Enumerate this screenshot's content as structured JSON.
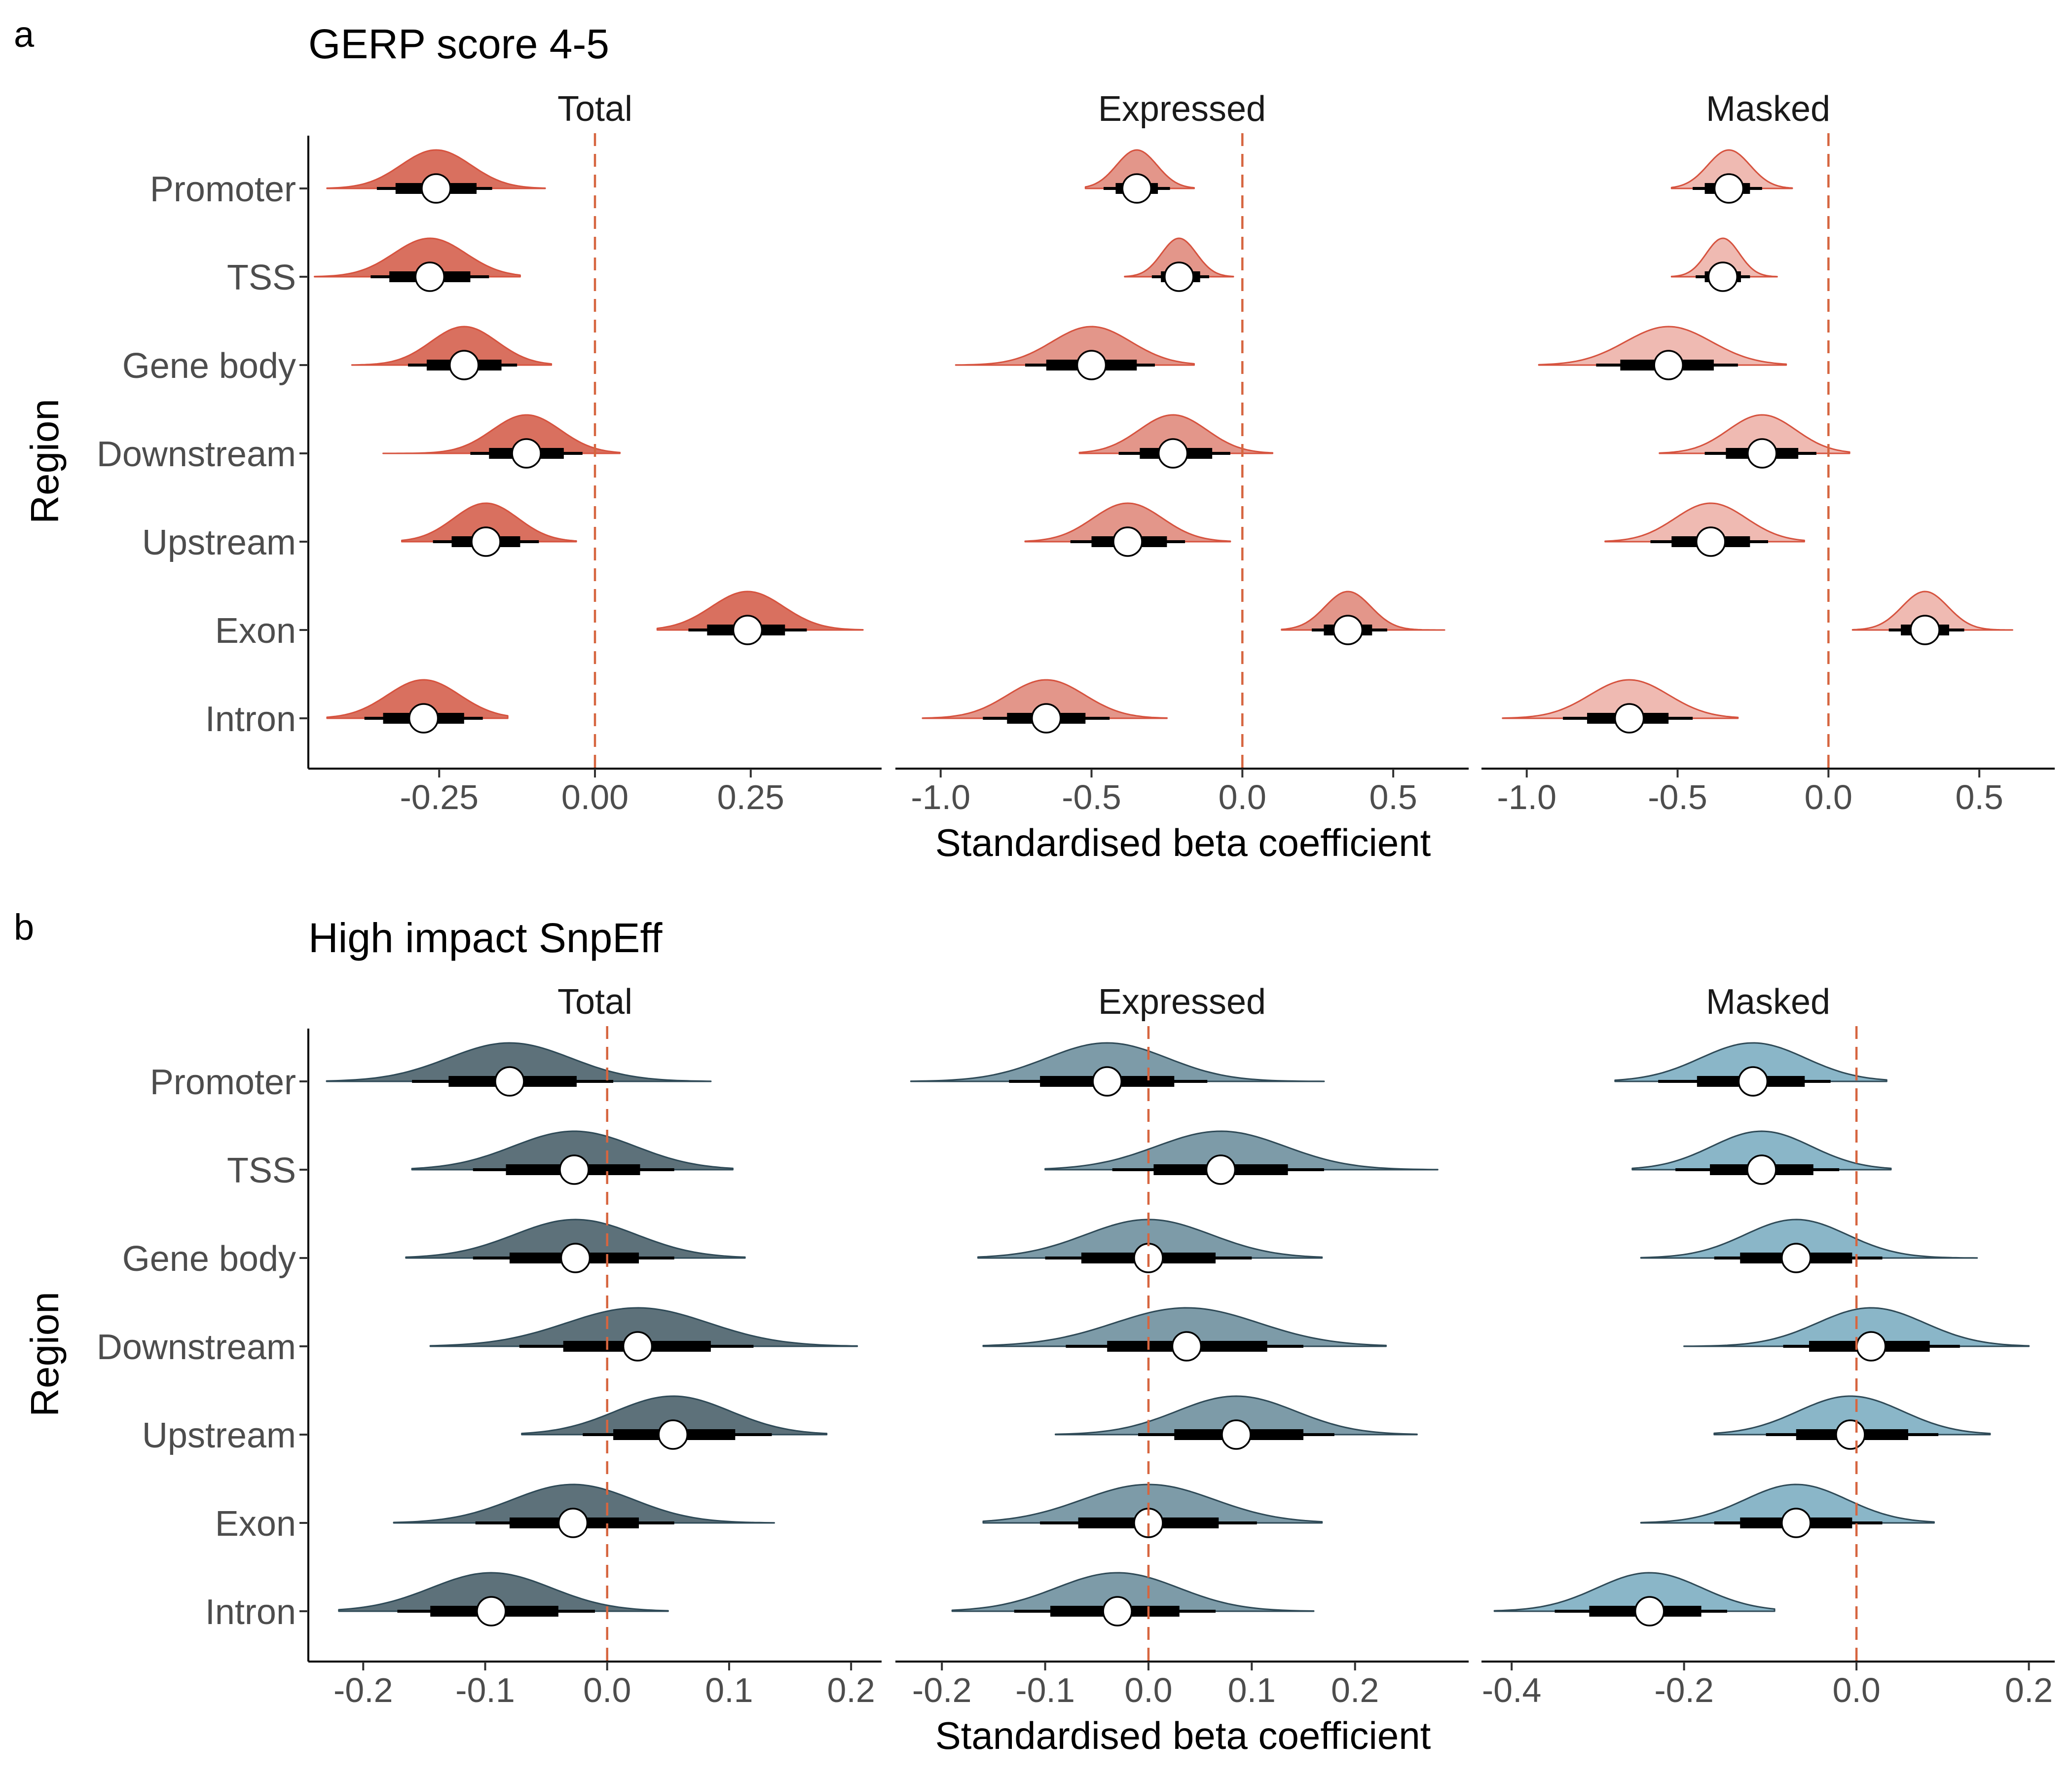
{
  "figure": {
    "panel_labels": [
      "a",
      "b"
    ],
    "y_label": "Region",
    "x_label": "Standardised beta coefficient",
    "regions": [
      "Promoter",
      "TSS",
      "Gene body",
      "Downstream",
      "Upstream",
      "Exon",
      "Intron"
    ]
  },
  "colors": {
    "gerp_total": "#d9705f",
    "gerp_expressed": "#e3968a",
    "gerp_masked": "#efbab2",
    "gerp_outline": "#d6533f",
    "snp_total": "#5d717a",
    "snp_expressed": "#7d9ba8",
    "snp_masked": "#8ab6c8",
    "snp_outline": "#2f4a57",
    "zero_line": "#d6653f"
  },
  "chart_data": [
    {
      "type": "density-interval",
      "title": "GERP score 4-5",
      "panel_label": "a",
      "facets": [
        {
          "name": "Total",
          "xlim": [
            -0.46,
            0.46
          ],
          "ticks": [
            -0.25,
            0.0,
            0.25
          ],
          "tick_labels": [
            "-0.25",
            "0.00",
            "0.25"
          ],
          "points": [
            {
              "region": "Promoter",
              "median": -0.255,
              "inner": [
                -0.32,
                -0.19
              ],
              "outer": [
                -0.35,
                -0.165
              ],
              "range": [
                -0.43,
                -0.08
              ]
            },
            {
              "region": "TSS",
              "median": -0.265,
              "inner": [
                -0.33,
                -0.2
              ],
              "outer": [
                -0.36,
                -0.17
              ],
              "range": [
                -0.45,
                -0.12
              ]
            },
            {
              "region": "Gene body",
              "median": -0.21,
              "inner": [
                -0.27,
                -0.15
              ],
              "outer": [
                -0.3,
                -0.125
              ],
              "range": [
                -0.39,
                -0.07
              ]
            },
            {
              "region": "Downstream",
              "median": -0.11,
              "inner": [
                -0.17,
                -0.05
              ],
              "outer": [
                -0.2,
                -0.02
              ],
              "range": [
                -0.34,
                0.04
              ]
            },
            {
              "region": "Upstream",
              "median": -0.175,
              "inner": [
                -0.23,
                -0.12
              ],
              "outer": [
                -0.26,
                -0.09
              ],
              "range": [
                -0.31,
                -0.03
              ]
            },
            {
              "region": "Exon",
              "median": 0.245,
              "inner": [
                0.18,
                0.305
              ],
              "outer": [
                0.15,
                0.34
              ],
              "range": [
                0.1,
                0.43
              ]
            },
            {
              "region": "Intron",
              "median": -0.275,
              "inner": [
                -0.34,
                -0.21
              ],
              "outer": [
                -0.37,
                -0.18
              ],
              "range": [
                -0.43,
                -0.14
              ]
            }
          ]
        },
        {
          "name": "Expressed",
          "xlim": [
            -1.15,
            0.75
          ],
          "ticks": [
            -1.0,
            -0.5,
            0.0,
            0.5
          ],
          "tick_labels": [
            "-1.0",
            "-0.5",
            "0.0",
            "0.5"
          ],
          "points": [
            {
              "region": "Promoter",
              "median": -0.35,
              "inner": [
                -0.42,
                -0.28
              ],
              "outer": [
                -0.46,
                -0.24
              ],
              "range": [
                -0.52,
                -0.16
              ]
            },
            {
              "region": "TSS",
              "median": -0.21,
              "inner": [
                -0.27,
                -0.14
              ],
              "outer": [
                -0.3,
                -0.11
              ],
              "range": [
                -0.39,
                -0.03
              ]
            },
            {
              "region": "Gene body",
              "median": -0.5,
              "inner": [
                -0.65,
                -0.35
              ],
              "outer": [
                -0.72,
                -0.29
              ],
              "range": [
                -0.95,
                -0.16
              ]
            },
            {
              "region": "Downstream",
              "median": -0.23,
              "inner": [
                -0.34,
                -0.1
              ],
              "outer": [
                -0.41,
                -0.04
              ],
              "range": [
                -0.54,
                0.1
              ]
            },
            {
              "region": "Upstream",
              "median": -0.38,
              "inner": [
                -0.5,
                -0.25
              ],
              "outer": [
                -0.57,
                -0.19
              ],
              "range": [
                -0.72,
                -0.04
              ]
            },
            {
              "region": "Exon",
              "median": 0.35,
              "inner": [
                0.27,
                0.43
              ],
              "outer": [
                0.23,
                0.48
              ],
              "range": [
                0.13,
                0.67
              ]
            },
            {
              "region": "Intron",
              "median": -0.65,
              "inner": [
                -0.78,
                -0.52
              ],
              "outer": [
                -0.86,
                -0.44
              ],
              "range": [
                -1.06,
                -0.25
              ]
            }
          ]
        },
        {
          "name": "Masked",
          "xlim": [
            -1.15,
            0.75
          ],
          "ticks": [
            -1.0,
            -0.5,
            0.0,
            0.5
          ],
          "tick_labels": [
            "-1.0",
            "-0.5",
            "0.0",
            "0.5"
          ],
          "points": [
            {
              "region": "Promoter",
              "median": -0.33,
              "inner": [
                -0.41,
                -0.26
              ],
              "outer": [
                -0.45,
                -0.22
              ],
              "range": [
                -0.52,
                -0.12
              ]
            },
            {
              "region": "TSS",
              "median": -0.35,
              "inner": [
                -0.41,
                -0.29
              ],
              "outer": [
                -0.44,
                -0.26
              ],
              "range": [
                -0.52,
                -0.17
              ]
            },
            {
              "region": "Gene body",
              "median": -0.53,
              "inner": [
                -0.69,
                -0.38
              ],
              "outer": [
                -0.77,
                -0.3
              ],
              "range": [
                -0.96,
                -0.14
              ]
            },
            {
              "region": "Downstream",
              "median": -0.22,
              "inner": [
                -0.34,
                -0.1
              ],
              "outer": [
                -0.41,
                -0.04
              ],
              "range": [
                -0.56,
                0.07
              ]
            },
            {
              "region": "Upstream",
              "median": -0.39,
              "inner": [
                -0.52,
                -0.26
              ],
              "outer": [
                -0.59,
                -0.2
              ],
              "range": [
                -0.74,
                -0.08
              ]
            },
            {
              "region": "Exon",
              "median": 0.32,
              "inner": [
                0.24,
                0.4
              ],
              "outer": [
                0.2,
                0.45
              ],
              "range": [
                0.08,
                0.61
              ]
            },
            {
              "region": "Intron",
              "median": -0.66,
              "inner": [
                -0.8,
                -0.53
              ],
              "outer": [
                -0.88,
                -0.45
              ],
              "range": [
                -1.08,
                -0.3
              ]
            }
          ]
        }
      ]
    },
    {
      "type": "density-interval",
      "title": "High impact SnpEff",
      "panel_label": "b",
      "facets": [
        {
          "name": "Total",
          "xlim": [
            -0.245,
            0.225
          ],
          "ticks": [
            -0.2,
            -0.1,
            0.0,
            0.1,
            0.2
          ],
          "tick_labels": [
            "-0.2",
            "-0.1",
            "0.0",
            "0.1",
            "0.2"
          ],
          "points": [
            {
              "region": "Promoter",
              "median": -0.08,
              "inner": [
                -0.13,
                -0.025
              ],
              "outer": [
                -0.16,
                0.005
              ],
              "range": [
                -0.23,
                0.085
              ]
            },
            {
              "region": "TSS",
              "median": -0.027,
              "inner": [
                -0.083,
                0.027
              ],
              "outer": [
                -0.11,
                0.055
              ],
              "range": [
                -0.16,
                0.103
              ]
            },
            {
              "region": "Gene body",
              "median": -0.026,
              "inner": [
                -0.08,
                0.026
              ],
              "outer": [
                -0.11,
                0.055
              ],
              "range": [
                -0.165,
                0.113
              ]
            },
            {
              "region": "Downstream",
              "median": 0.025,
              "inner": [
                -0.036,
                0.085
              ],
              "outer": [
                -0.072,
                0.12
              ],
              "range": [
                -0.145,
                0.205
              ]
            },
            {
              "region": "Upstream",
              "median": 0.054,
              "inner": [
                0.005,
                0.105
              ],
              "outer": [
                -0.02,
                0.135
              ],
              "range": [
                -0.07,
                0.18
              ]
            },
            {
              "region": "Exon",
              "median": -0.028,
              "inner": [
                -0.08,
                0.026
              ],
              "outer": [
                -0.108,
                0.055
              ],
              "range": [
                -0.175,
                0.137
              ]
            },
            {
              "region": "Intron",
              "median": -0.095,
              "inner": [
                -0.145,
                -0.04
              ],
              "outer": [
                -0.172,
                -0.01
              ],
              "range": [
                -0.22,
                0.05
              ]
            }
          ]
        },
        {
          "name": "Expressed",
          "xlim": [
            -0.245,
            0.31
          ],
          "ticks": [
            -0.2,
            -0.1,
            0.0,
            0.1,
            0.2
          ],
          "tick_labels": [
            "-0.2",
            "-0.1",
            "0.0",
            "0.1",
            "0.2"
          ],
          "points": [
            {
              "region": "Promoter",
              "median": -0.04,
              "inner": [
                -0.105,
                0.025
              ],
              "outer": [
                -0.135,
                0.057
              ],
              "range": [
                -0.23,
                0.17
              ]
            },
            {
              "region": "TSS",
              "median": 0.07,
              "inner": [
                0.005,
                0.135
              ],
              "outer": [
                -0.035,
                0.17
              ],
              "range": [
                -0.1,
                0.28
              ]
            },
            {
              "region": "Gene body",
              "median": 0.0,
              "inner": [
                -0.065,
                0.065
              ],
              "outer": [
                -0.1,
                0.1
              ],
              "range": [
                -0.165,
                0.168
              ]
            },
            {
              "region": "Downstream",
              "median": 0.037,
              "inner": [
                -0.04,
                0.115
              ],
              "outer": [
                -0.08,
                0.15
              ],
              "range": [
                -0.16,
                0.23
              ]
            },
            {
              "region": "Upstream",
              "median": 0.085,
              "inner": [
                0.025,
                0.15
              ],
              "outer": [
                -0.01,
                0.18
              ],
              "range": [
                -0.09,
                0.26
              ]
            },
            {
              "region": "Exon",
              "median": 0.0,
              "inner": [
                -0.068,
                0.068
              ],
              "outer": [
                -0.105,
                0.105
              ],
              "range": [
                -0.16,
                0.168
              ]
            },
            {
              "region": "Intron",
              "median": -0.03,
              "inner": [
                -0.095,
                0.03
              ],
              "outer": [
                -0.13,
                0.065
              ],
              "range": [
                -0.19,
                0.16
              ]
            }
          ]
        },
        {
          "name": "Masked",
          "xlim": [
            -0.435,
            0.23
          ],
          "ticks": [
            -0.4,
            -0.2,
            0.0,
            0.2
          ],
          "tick_labels": [
            "-0.4",
            "-0.2",
            "0.0",
            "0.2"
          ],
          "points": [
            {
              "region": "Promoter",
              "median": -0.12,
              "inner": [
                -0.185,
                -0.06
              ],
              "outer": [
                -0.23,
                -0.03
              ],
              "range": [
                -0.28,
                0.035
              ]
            },
            {
              "region": "TSS",
              "median": -0.11,
              "inner": [
                -0.17,
                -0.05
              ],
              "outer": [
                -0.21,
                -0.02
              ],
              "range": [
                -0.26,
                0.04
              ]
            },
            {
              "region": "Gene body",
              "median": -0.07,
              "inner": [
                -0.135,
                -0.005
              ],
              "outer": [
                -0.165,
                0.03
              ],
              "range": [
                -0.25,
                0.14
              ]
            },
            {
              "region": "Downstream",
              "median": 0.017,
              "inner": [
                -0.055,
                0.085
              ],
              "outer": [
                -0.085,
                0.12
              ],
              "range": [
                -0.2,
                0.2
              ]
            },
            {
              "region": "Upstream",
              "median": -0.007,
              "inner": [
                -0.07,
                0.06
              ],
              "outer": [
                -0.105,
                0.095
              ],
              "range": [
                -0.165,
                0.155
              ]
            },
            {
              "region": "Exon",
              "median": -0.07,
              "inner": [
                -0.135,
                -0.005
              ],
              "outer": [
                -0.165,
                0.03
              ],
              "range": [
                -0.25,
                0.09
              ]
            },
            {
              "region": "Intron",
              "median": -0.24,
              "inner": [
                -0.31,
                -0.18
              ],
              "outer": [
                -0.35,
                -0.15
              ],
              "range": [
                -0.42,
                -0.095
              ]
            }
          ]
        }
      ]
    }
  ]
}
